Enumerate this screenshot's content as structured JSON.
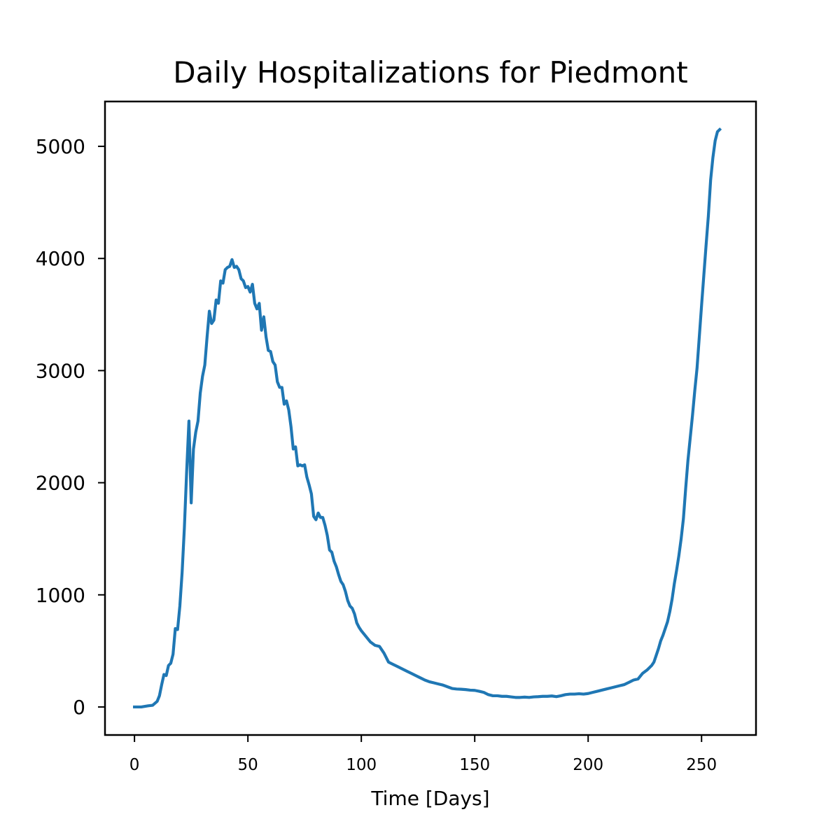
{
  "chart_data": {
    "type": "line",
    "title": "Daily Hospitalizations for Piedmont",
    "xlabel": "Time [Days]",
    "ylabel": "",
    "xlim": [
      -13,
      274
    ],
    "ylim": [
      -250,
      5400
    ],
    "x_ticks": [
      0,
      50,
      100,
      150,
      200,
      250
    ],
    "x_tick_labels": [
      "0",
      "50",
      "100",
      "150",
      "200",
      "250"
    ],
    "y_ticks": [
      0,
      1000,
      2000,
      3000,
      4000,
      5000
    ],
    "y_tick_labels": [
      "0",
      "1000",
      "2000",
      "3000",
      "4000",
      "5000"
    ],
    "grid": false,
    "series": [
      {
        "color": "#1f77b4",
        "points": [
          [
            0,
            0
          ],
          [
            3,
            0
          ],
          [
            6,
            10
          ],
          [
            8,
            15
          ],
          [
            10,
            50
          ],
          [
            11,
            100
          ],
          [
            12,
            200
          ],
          [
            13,
            290
          ],
          [
            14,
            280
          ],
          [
            15,
            370
          ],
          [
            16,
            390
          ],
          [
            17,
            470
          ],
          [
            18,
            700
          ],
          [
            19,
            690
          ],
          [
            20,
            900
          ],
          [
            21,
            1200
          ],
          [
            22,
            1600
          ],
          [
            23,
            2100
          ],
          [
            24,
            2550
          ],
          [
            25,
            1820
          ],
          [
            26,
            2300
          ],
          [
            27,
            2450
          ],
          [
            28,
            2550
          ],
          [
            29,
            2800
          ],
          [
            30,
            2950
          ],
          [
            31,
            3050
          ],
          [
            32,
            3300
          ],
          [
            33,
            3530
          ],
          [
            34,
            3420
          ],
          [
            35,
            3450
          ],
          [
            36,
            3630
          ],
          [
            37,
            3600
          ],
          [
            38,
            3800
          ],
          [
            39,
            3780
          ],
          [
            40,
            3900
          ],
          [
            41,
            3920
          ],
          [
            42,
            3930
          ],
          [
            43,
            3990
          ],
          [
            44,
            3920
          ],
          [
            45,
            3930
          ],
          [
            46,
            3900
          ],
          [
            47,
            3820
          ],
          [
            48,
            3800
          ],
          [
            49,
            3740
          ],
          [
            50,
            3750
          ],
          [
            51,
            3700
          ],
          [
            52,
            3770
          ],
          [
            53,
            3600
          ],
          [
            54,
            3550
          ],
          [
            55,
            3600
          ],
          [
            56,
            3360
          ],
          [
            57,
            3480
          ],
          [
            58,
            3300
          ],
          [
            59,
            3180
          ],
          [
            60,
            3170
          ],
          [
            61,
            3080
          ],
          [
            62,
            3050
          ],
          [
            63,
            2900
          ],
          [
            64,
            2850
          ],
          [
            65,
            2850
          ],
          [
            66,
            2700
          ],
          [
            67,
            2730
          ],
          [
            68,
            2650
          ],
          [
            69,
            2500
          ],
          [
            70,
            2300
          ],
          [
            71,
            2320
          ],
          [
            72,
            2150
          ],
          [
            73,
            2160
          ],
          [
            74,
            2150
          ],
          [
            75,
            2160
          ],
          [
            76,
            2050
          ],
          [
            77,
            1980
          ],
          [
            78,
            1900
          ],
          [
            79,
            1700
          ],
          [
            80,
            1670
          ],
          [
            81,
            1730
          ],
          [
            82,
            1690
          ],
          [
            83,
            1690
          ],
          [
            84,
            1620
          ],
          [
            85,
            1530
          ],
          [
            86,
            1400
          ],
          [
            87,
            1380
          ],
          [
            88,
            1300
          ],
          [
            89,
            1250
          ],
          [
            90,
            1180
          ],
          [
            91,
            1120
          ],
          [
            92,
            1090
          ],
          [
            93,
            1030
          ],
          [
            94,
            950
          ],
          [
            95,
            900
          ],
          [
            96,
            880
          ],
          [
            97,
            830
          ],
          [
            98,
            750
          ],
          [
            99,
            710
          ],
          [
            100,
            680
          ],
          [
            102,
            630
          ],
          [
            104,
            580
          ],
          [
            106,
            550
          ],
          [
            108,
            540
          ],
          [
            110,
            480
          ],
          [
            112,
            400
          ],
          [
            114,
            380
          ],
          [
            116,
            360
          ],
          [
            118,
            340
          ],
          [
            120,
            320
          ],
          [
            122,
            300
          ],
          [
            124,
            280
          ],
          [
            126,
            260
          ],
          [
            128,
            240
          ],
          [
            130,
            225
          ],
          [
            132,
            215
          ],
          [
            134,
            205
          ],
          [
            136,
            195
          ],
          [
            138,
            180
          ],
          [
            140,
            165
          ],
          [
            142,
            160
          ],
          [
            144,
            158
          ],
          [
            146,
            155
          ],
          [
            148,
            150
          ],
          [
            150,
            148
          ],
          [
            152,
            140
          ],
          [
            154,
            130
          ],
          [
            156,
            110
          ],
          [
            158,
            100
          ],
          [
            160,
            100
          ],
          [
            162,
            95
          ],
          [
            164,
            95
          ],
          [
            166,
            90
          ],
          [
            168,
            85
          ],
          [
            170,
            85
          ],
          [
            172,
            88
          ],
          [
            174,
            85
          ],
          [
            176,
            90
          ],
          [
            178,
            92
          ],
          [
            180,
            95
          ],
          [
            182,
            95
          ],
          [
            184,
            98
          ],
          [
            186,
            92
          ],
          [
            188,
            100
          ],
          [
            190,
            110
          ],
          [
            192,
            115
          ],
          [
            194,
            115
          ],
          [
            196,
            118
          ],
          [
            198,
            115
          ],
          [
            200,
            120
          ],
          [
            202,
            130
          ],
          [
            204,
            140
          ],
          [
            206,
            150
          ],
          [
            208,
            160
          ],
          [
            210,
            170
          ],
          [
            212,
            180
          ],
          [
            214,
            190
          ],
          [
            216,
            200
          ],
          [
            218,
            220
          ],
          [
            220,
            240
          ],
          [
            222,
            250
          ],
          [
            224,
            300
          ],
          [
            226,
            330
          ],
          [
            228,
            370
          ],
          [
            229,
            400
          ],
          [
            230,
            460
          ],
          [
            231,
            520
          ],
          [
            232,
            590
          ],
          [
            233,
            640
          ],
          [
            234,
            700
          ],
          [
            235,
            760
          ],
          [
            236,
            850
          ],
          [
            237,
            960
          ],
          [
            238,
            1100
          ],
          [
            239,
            1220
          ],
          [
            240,
            1350
          ],
          [
            241,
            1500
          ],
          [
            242,
            1680
          ],
          [
            243,
            1950
          ],
          [
            244,
            2200
          ],
          [
            245,
            2400
          ],
          [
            246,
            2600
          ],
          [
            247,
            2820
          ],
          [
            248,
            3020
          ],
          [
            249,
            3300
          ],
          [
            250,
            3580
          ],
          [
            251,
            3850
          ],
          [
            252,
            4120
          ],
          [
            253,
            4380
          ],
          [
            254,
            4700
          ],
          [
            255,
            4900
          ],
          [
            256,
            5050
          ],
          [
            257,
            5130
          ],
          [
            258,
            5150
          ]
        ]
      }
    ]
  }
}
